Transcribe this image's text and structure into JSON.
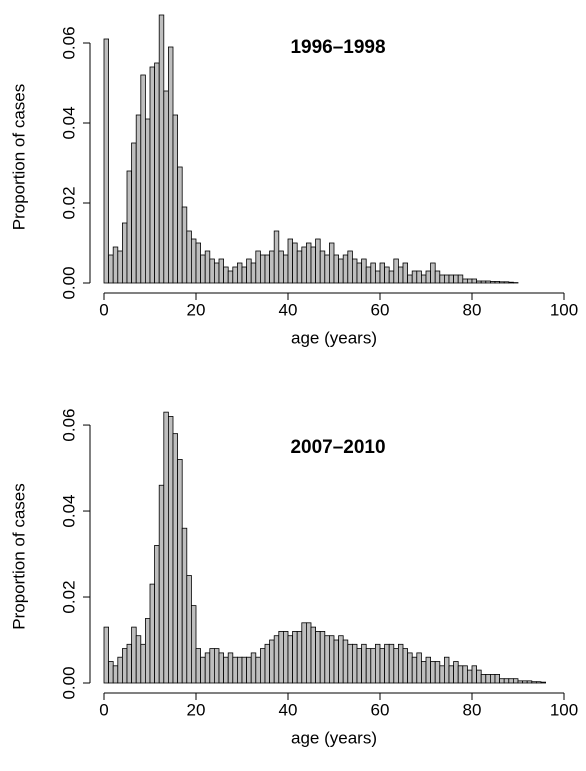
{
  "chart_data": [
    {
      "type": "histogram",
      "title": "1996–1998",
      "xlabel": "age (years)",
      "ylabel": "Proportion of cases",
      "color": "#bebebe",
      "bins": [
        0,
        1,
        2,
        3,
        4,
        5,
        6,
        7,
        8,
        9,
        10,
        11,
        12,
        13,
        14,
        15,
        16,
        17,
        18,
        19,
        20,
        21,
        22,
        23,
        24,
        25,
        26,
        27,
        28,
        29,
        30,
        31,
        32,
        33,
        34,
        35,
        36,
        37,
        38,
        39,
        40,
        41,
        42,
        43,
        44,
        45,
        46,
        47,
        48,
        49,
        50,
        51,
        52,
        53,
        54,
        55,
        56,
        57,
        58,
        59,
        60,
        61,
        62,
        63,
        64,
        65,
        66,
        67,
        68,
        69,
        70,
        71,
        72,
        73,
        74,
        75,
        76,
        77,
        78,
        79,
        80,
        81,
        82,
        83,
        84,
        85,
        86,
        87,
        88,
        89,
        90,
        91,
        92,
        93,
        94,
        95,
        96,
        97,
        98,
        99,
        100
      ],
      "values": [
        0.061,
        0.007,
        0.009,
        0.008,
        0.015,
        0.028,
        0.035,
        0.042,
        0.052,
        0.041,
        0.054,
        0.055,
        0.067,
        0.048,
        0.059,
        0.042,
        0.029,
        0.019,
        0.013,
        0.011,
        0.01,
        0.007,
        0.008,
        0.006,
        0.005,
        0.006,
        0.004,
        0.003,
        0.004,
        0.005,
        0.004,
        0.006,
        0.005,
        0.008,
        0.007,
        0.007,
        0.008,
        0.013,
        0.008,
        0.007,
        0.011,
        0.01,
        0.008,
        0.009,
        0.01,
        0.009,
        0.011,
        0.008,
        0.007,
        0.01,
        0.007,
        0.006,
        0.007,
        0.008,
        0.006,
        0.005,
        0.006,
        0.004,
        0.005,
        0.003,
        0.005,
        0.004,
        0.003,
        0.006,
        0.004,
        0.005,
        0.002,
        0.003,
        0.003,
        0.002,
        0.003,
        0.005,
        0.003,
        0.002,
        0.002,
        0.002,
        0.002,
        0.002,
        0.001,
        0.001,
        0.001,
        0.0005,
        0.0005,
        0.0005,
        0.0004,
        0.0004,
        0.0003,
        0.0003,
        0.0002,
        0.0001,
        0,
        0,
        0,
        0,
        0,
        0,
        0,
        0,
        0,
        0
      ],
      "xlim": [
        0,
        100
      ],
      "ylim": [
        0,
        0.068
      ],
      "xticks": [
        0,
        20,
        40,
        60,
        80,
        100
      ],
      "yticks": [
        {
          "value": 0,
          "label": "0.00"
        },
        {
          "value": 0.02,
          "label": "0.02"
        },
        {
          "value": 0.04,
          "label": "0.04"
        },
        {
          "value": 0.06,
          "label": "0.06"
        }
      ]
    },
    {
      "type": "histogram",
      "title": "2007–2010",
      "xlabel": "age (years)",
      "ylabel": "Proportion of cases",
      "color": "#bebebe",
      "bins": [
        0,
        1,
        2,
        3,
        4,
        5,
        6,
        7,
        8,
        9,
        10,
        11,
        12,
        13,
        14,
        15,
        16,
        17,
        18,
        19,
        20,
        21,
        22,
        23,
        24,
        25,
        26,
        27,
        28,
        29,
        30,
        31,
        32,
        33,
        34,
        35,
        36,
        37,
        38,
        39,
        40,
        41,
        42,
        43,
        44,
        45,
        46,
        47,
        48,
        49,
        50,
        51,
        52,
        53,
        54,
        55,
        56,
        57,
        58,
        59,
        60,
        61,
        62,
        63,
        64,
        65,
        66,
        67,
        68,
        69,
        70,
        71,
        72,
        73,
        74,
        75,
        76,
        77,
        78,
        79,
        80,
        81,
        82,
        83,
        84,
        85,
        86,
        87,
        88,
        89,
        90,
        91,
        92,
        93,
        94,
        95,
        96,
        97,
        98,
        99,
        100
      ],
      "values": [
        0.013,
        0.005,
        0.004,
        0.006,
        0.008,
        0.009,
        0.013,
        0.011,
        0.009,
        0.015,
        0.023,
        0.032,
        0.046,
        0.063,
        0.062,
        0.058,
        0.052,
        0.036,
        0.025,
        0.018,
        0.008,
        0.006,
        0.007,
        0.008,
        0.008,
        0.007,
        0.006,
        0.007,
        0.006,
        0.006,
        0.006,
        0.006,
        0.007,
        0.006,
        0.008,
        0.009,
        0.01,
        0.011,
        0.012,
        0.012,
        0.011,
        0.012,
        0.012,
        0.014,
        0.014,
        0.013,
        0.012,
        0.012,
        0.011,
        0.011,
        0.01,
        0.011,
        0.01,
        0.009,
        0.009,
        0.008,
        0.009,
        0.008,
        0.008,
        0.009,
        0.008,
        0.009,
        0.009,
        0.008,
        0.009,
        0.008,
        0.007,
        0.006,
        0.007,
        0.005,
        0.006,
        0.005,
        0.005,
        0.004,
        0.006,
        0.004,
        0.005,
        0.004,
        0.004,
        0.003,
        0.004,
        0.003,
        0.002,
        0.002,
        0.002,
        0.002,
        0.001,
        0.001,
        0.001,
        0.001,
        0.0005,
        0.0005,
        0.0005,
        0.0003,
        0.0003,
        0.0002,
        0,
        0,
        0,
        0
      ],
      "xlim": [
        0,
        100
      ],
      "ylim": [
        0,
        0.0635
      ],
      "xticks": [
        0,
        20,
        40,
        60,
        80,
        100
      ],
      "yticks": [
        {
          "value": 0,
          "label": "0.00"
        },
        {
          "value": 0.02,
          "label": "0.02"
        },
        {
          "value": 0.04,
          "label": "0.04"
        },
        {
          "value": 0.06,
          "label": "0.06"
        }
      ]
    }
  ]
}
